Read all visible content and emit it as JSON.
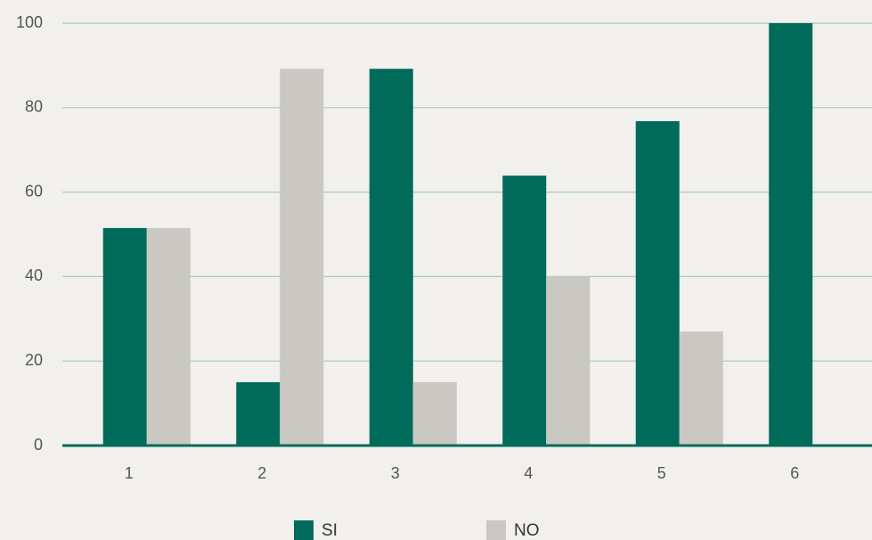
{
  "chart_data": {
    "type": "bar",
    "categories": [
      "1",
      "2",
      "3",
      "4",
      "5",
      "6"
    ],
    "series": [
      {
        "name": "SI",
        "color": "#006b5a",
        "values": [
          51.5,
          15,
          89.2,
          63.9,
          76.8,
          100
        ]
      },
      {
        "name": "NO",
        "color": "#c9c8c3",
        "values": [
          51.5,
          89.2,
          15,
          40,
          27,
          0
        ]
      }
    ],
    "ylim": [
      0,
      100
    ],
    "yticks": [
      0,
      20,
      40,
      60,
      80,
      100
    ],
    "grid": true
  }
}
